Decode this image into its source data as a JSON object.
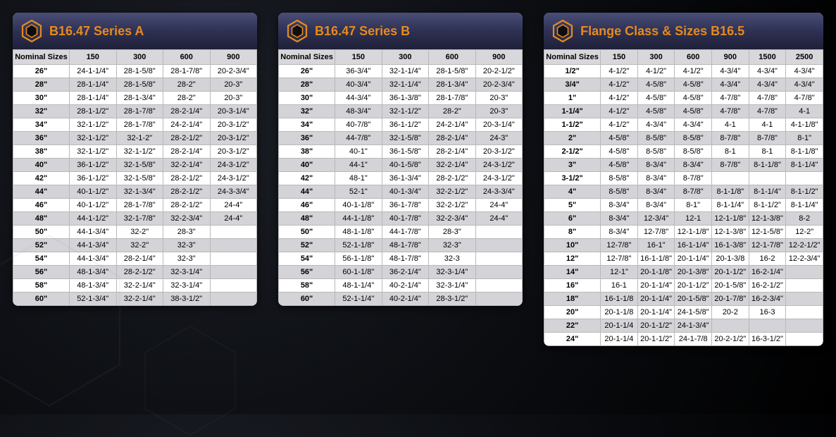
{
  "background_hex_stroke": "#808896",
  "icon": {
    "outer": "#e68a1f",
    "inner_fill": "#0e0e0e"
  },
  "tables": [
    {
      "id": "series-a",
      "title": "B16.47  Series A",
      "widthClass": "card-a",
      "columns": [
        "Nominal Sizes",
        "150",
        "300",
        "600",
        "900"
      ],
      "rows": [
        [
          "26\"",
          "24-1-1/4\"",
          "28-1-5/8\"",
          "28-1-7/8\"",
          "20-2-3/4\""
        ],
        [
          "28\"",
          "28-1-1/4\"",
          "28-1-5/8\"",
          "28-2\"",
          "20-3\""
        ],
        [
          "30\"",
          "28-1-1/4\"",
          "28-1-3/4\"",
          "28-2\"",
          "20-3\""
        ],
        [
          "32\"",
          "28-1-1/2\"",
          "28-1-7/8\"",
          "28-2-1/4\"",
          "20-3-1/4\""
        ],
        [
          "34\"",
          "32-1-1/2\"",
          "28-1-7/8\"",
          "24-2-1/4\"",
          "20-3-1/2\""
        ],
        [
          "36\"",
          "32-1-1/2\"",
          "32-1-2\"",
          "28-2-1/2\"",
          "20-3-1/2\""
        ],
        [
          "38\"",
          "32-1-1/2\"",
          "32-1-1/2\"",
          "28-2-1/4\"",
          "20-3-1/2\""
        ],
        [
          "40\"",
          "36-1-1/2\"",
          "32-1-5/8\"",
          "32-2-1/4\"",
          "24-3-1/2\""
        ],
        [
          "42\"",
          "36-1-1/2\"",
          "32-1-5/8\"",
          "28-2-1/2\"",
          "24-3-1/2\""
        ],
        [
          "44\"",
          "40-1-1/2\"",
          "32-1-3/4\"",
          "28-2-1/2\"",
          "24-3-3/4\""
        ],
        [
          "46\"",
          "40-1-1/2\"",
          "28-1-7/8\"",
          "28-2-1/2\"",
          "24-4\""
        ],
        [
          "48\"",
          "44-1-1/2\"",
          "32-1-7/8\"",
          "32-2-3/4\"",
          "24-4\""
        ],
        [
          "50\"",
          "44-1-3/4\"",
          "32-2\"",
          "28-3\"",
          ""
        ],
        [
          "52\"",
          "44-1-3/4\"",
          "32-2\"",
          "32-3\"",
          ""
        ],
        [
          "54\"",
          "44-1-3/4\"",
          "28-2-1/4\"",
          "32-3\"",
          ""
        ],
        [
          "56\"",
          "48-1-3/4\"",
          "28-2-1/2\"",
          "32-3-1/4\"",
          ""
        ],
        [
          "58\"",
          "48-1-3/4\"",
          "32-2-1/4\"",
          "32-3-1/4\"",
          ""
        ],
        [
          "60\"",
          "52-1-3/4\"",
          "32-2-1/4\"",
          "38-3-1/2\"",
          ""
        ]
      ]
    },
    {
      "id": "series-b",
      "title": "B16.47  Series B",
      "widthClass": "card-b",
      "columns": [
        "Nominal Sizes",
        "150",
        "300",
        "600",
        "900"
      ],
      "rows": [
        [
          "26\"",
          "36-3/4\"",
          "32-1-1/4\"",
          "28-1-5/8\"",
          "20-2-1/2\""
        ],
        [
          "28\"",
          "40-3/4\"",
          "32-1-1/4\"",
          "28-1-3/4\"",
          "20-2-3/4\""
        ],
        [
          "30\"",
          "44-3/4\"",
          "36-1-3/8\"",
          "28-1-7/8\"",
          "20-3\""
        ],
        [
          "32\"",
          "48-3/4\"",
          "32-1-1/2\"",
          "28-2\"",
          "20-3\""
        ],
        [
          "34\"",
          "40-7/8\"",
          "36-1-1/2\"",
          "24-2-1/4\"",
          "20-3-1/4\""
        ],
        [
          "36\"",
          "44-7/8\"",
          "32-1-5/8\"",
          "28-2-1/4\"",
          "24-3\""
        ],
        [
          "38\"",
          "40-1\"",
          "36-1-5/8\"",
          "28-2-1/4\"",
          "20-3-1/2\""
        ],
        [
          "40\"",
          "44-1\"",
          "40-1-5/8\"",
          "32-2-1/4\"",
          "24-3-1/2\""
        ],
        [
          "42\"",
          "48-1\"",
          "36-1-3/4\"",
          "28-2-1/2\"",
          "24-3-1/2\""
        ],
        [
          "44\"",
          "52-1\"",
          "40-1-3/4\"",
          "32-2-1/2\"",
          "24-3-3/4\""
        ],
        [
          "46\"",
          "40-1-1/8\"",
          "36-1-7/8\"",
          "32-2-1/2\"",
          "24-4\""
        ],
        [
          "48\"",
          "44-1-1/8\"",
          "40-1-7/8\"",
          "32-2-3/4\"",
          "24-4\""
        ],
        [
          "50\"",
          "48-1-1/8\"",
          "44-1-7/8\"",
          "28-3\"",
          ""
        ],
        [
          "52\"",
          "52-1-1/8\"",
          "48-1-7/8\"",
          "32-3\"",
          ""
        ],
        [
          "54\"",
          "56-1-1/8\"",
          "48-1-7/8\"",
          "32-3",
          ""
        ],
        [
          "56\"",
          "60-1-1/8\"",
          "36-2-1/4\"",
          "32-3-1/4\"",
          ""
        ],
        [
          "58\"",
          "48-1-1/4\"",
          "40-2-1/4\"",
          "32-3-1/4\"",
          ""
        ],
        [
          "60\"",
          "52-1-1/4\"",
          "40-2-1/4\"",
          "28-3-1/2\"",
          ""
        ]
      ]
    },
    {
      "id": "flange-class",
      "title": "Flange Class & Sizes  B16.5",
      "widthClass": "card-c",
      "columns": [
        "Nominal Sizes",
        "150",
        "300",
        "600",
        "900",
        "1500",
        "2500"
      ],
      "rows": [
        [
          "1/2\"",
          "4-1/2\"",
          "4-1/2\"",
          "4-1/2\"",
          "4-3/4\"",
          "4-3/4\"",
          "4-3/4\""
        ],
        [
          "3/4\"",
          "4-1/2\"",
          "4-5/8\"",
          "4-5/8\"",
          "4-3/4\"",
          "4-3/4\"",
          "4-3/4\""
        ],
        [
          "1\"",
          "4-1/2\"",
          "4-5/8\"",
          "4-5/8\"",
          "4-7/8\"",
          "4-7/8\"",
          "4-7/8\""
        ],
        [
          "1-1/4\"",
          "4-1/2\"",
          "4-5/8\"",
          "4-5/8\"",
          "4-7/8\"",
          "4-7/8\"",
          "4-1"
        ],
        [
          "1-1/2\"",
          "4-1/2\"",
          "4-3/4\"",
          "4-3/4\"",
          "4-1",
          "4-1",
          "4-1-1/8\""
        ],
        [
          "2\"",
          "4-5/8\"",
          "8-5/8\"",
          "8-5/8\"",
          "8-7/8\"",
          "8-7/8\"",
          "8-1\""
        ],
        [
          "2-1/2\"",
          "4-5/8\"",
          "8-5/8\"",
          "8-5/8\"",
          "8-1",
          "8-1",
          "8-1-1/8\""
        ],
        [
          "3\"",
          "4-5/8\"",
          "8-3/4\"",
          "8-3/4\"",
          "8-7/8\"",
          "8-1-1/8\"",
          "8-1-1/4\""
        ],
        [
          "3-1/2\"",
          "8-5/8\"",
          "8-3/4\"",
          "8-7/8\"",
          "",
          "",
          ""
        ],
        [
          "4\"",
          "8-5/8\"",
          "8-3/4\"",
          "8-7/8\"",
          "8-1-1/8\"",
          "8-1-1/4\"",
          "8-1-1/2\""
        ],
        [
          "5\"",
          "8-3/4\"",
          "8-3/4\"",
          "8-1\"",
          "8-1-1/4\"",
          "8-1-1/2\"",
          "8-1-1/4\""
        ],
        [
          "6\"",
          "8-3/4\"",
          "12-3/4\"",
          "12-1",
          "12-1-1/8\"",
          "12-1-3/8\"",
          "8-2"
        ],
        [
          "8\"",
          "8-3/4\"",
          "12-7/8\"",
          "12-1-1/8\"",
          "12-1-3/8\"",
          "12-1-5/8\"",
          "12-2\""
        ],
        [
          "10\"",
          "12-7/8\"",
          "16-1\"",
          "16-1-1/4\"",
          "16-1-3/8\"",
          "12-1-7/8\"",
          "12-2-1/2\""
        ],
        [
          "12\"",
          "12-7/8\"",
          "16-1-1/8\"",
          "20-1-1/4\"",
          "20-1-3/8",
          "16-2",
          "12-2-3/4\""
        ],
        [
          "14\"",
          "12-1\"",
          "20-1-1/8\"",
          "20-1-3/8\"",
          "20-1-1/2\"",
          "16-2-1/4\"",
          ""
        ],
        [
          "16\"",
          "16-1",
          "20-1-1/4\"",
          "20-1-1/2\"",
          "20-1-5/8\"",
          "16-2-1/2\"",
          ""
        ],
        [
          "18\"",
          "16-1-1/8",
          "20-1-1/4\"",
          "20-1-5/8\"",
          "20-1-7/8\"",
          "16-2-3/4\"",
          ""
        ],
        [
          "20\"",
          "20-1-1/8",
          "20-1-1/4\"",
          "24-1-5/8\"",
          "20-2",
          "16-3",
          ""
        ],
        [
          "22\"",
          "20-1-1/4",
          "20-1-1/2\"",
          "24-1-3/4\"",
          "",
          "",
          ""
        ],
        [
          "24\"",
          "20-1-1/4",
          "20-1-1/2\"",
          "24-1-7/8",
          "20-2-1/2\"",
          "16-3-1/2\"",
          ""
        ]
      ]
    }
  ]
}
